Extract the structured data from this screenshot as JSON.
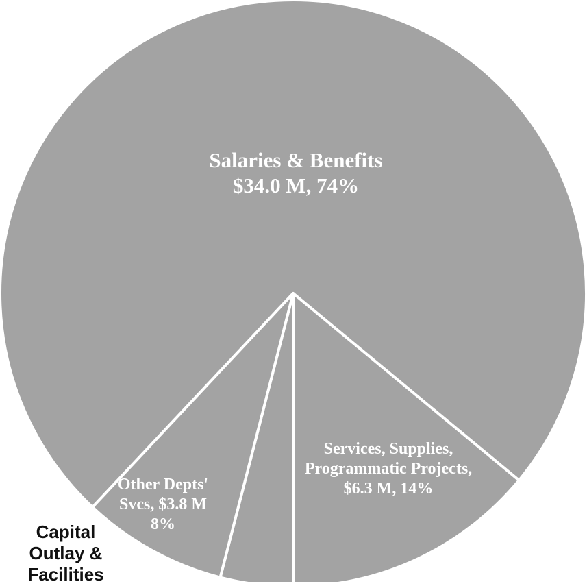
{
  "chart_data": {
    "type": "pie",
    "categories": [
      "Salaries & Benefits",
      "Services, Supplies, Programmatic Projects,",
      "Capital Outlay & Facilities",
      "Other Depts' Svcs,"
    ],
    "values": [
      74,
      14,
      4,
      8
    ],
    "value_labels": [
      "$34.0 M, 74%",
      "$6.3 M, 14%",
      null,
      "$3.8 M 8%"
    ],
    "color": "#a3a3a3"
  }
}
